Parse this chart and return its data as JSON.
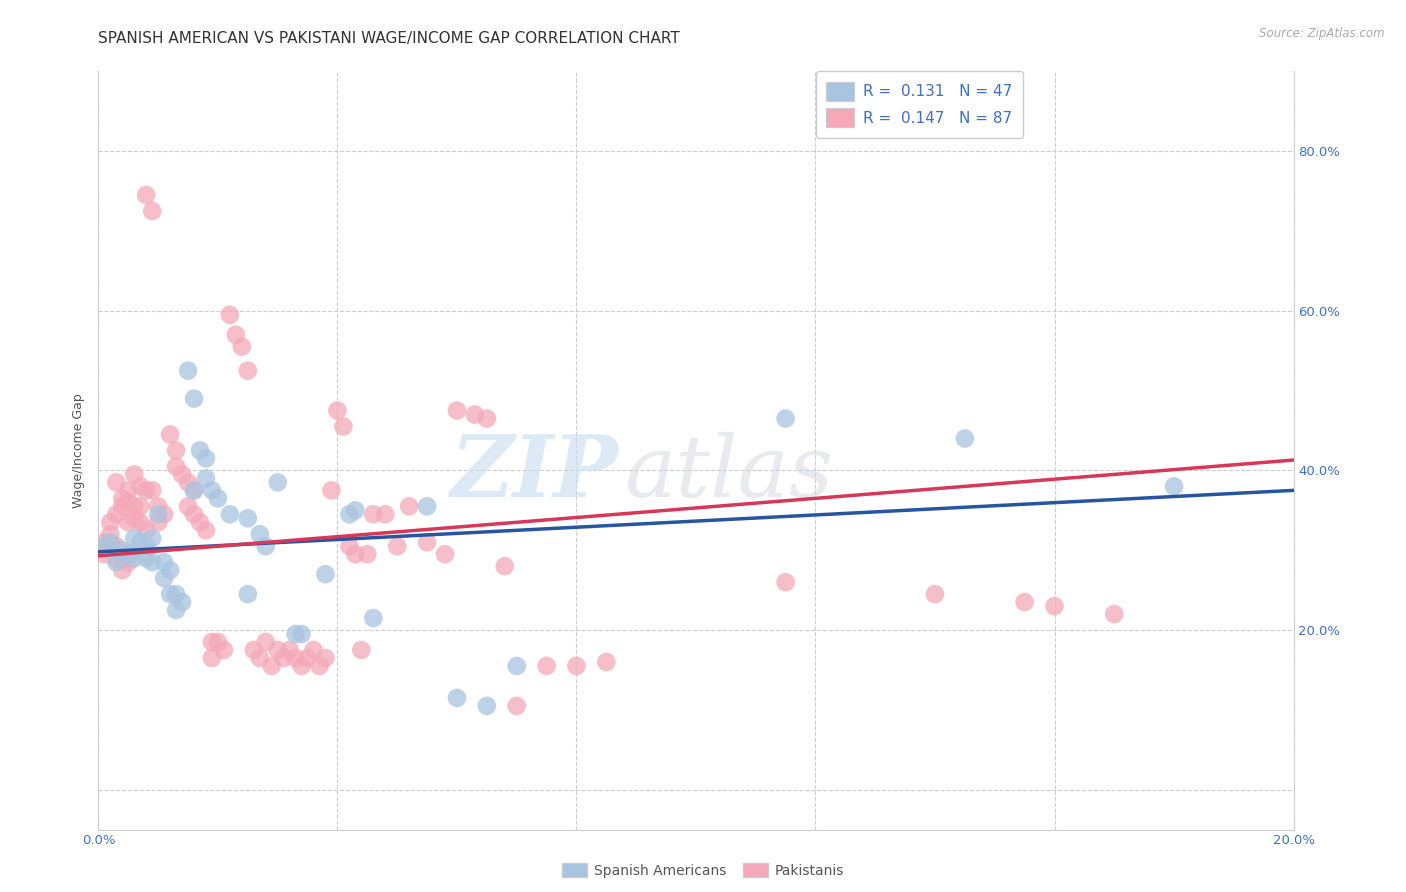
{
  "title": "SPANISH AMERICAN VS PAKISTANI WAGE/INCOME GAP CORRELATION CHART",
  "source": "Source: ZipAtlas.com",
  "ylabel": "Wage/Income Gap",
  "xlim": [
    0.0,
    0.2
  ],
  "ylim": [
    -0.05,
    0.9
  ],
  "x_ticks": [
    0.0,
    0.04,
    0.08,
    0.12,
    0.16,
    0.2
  ],
  "x_tick_labels": [
    "0.0%",
    "",
    "",
    "",
    "",
    "20.0%"
  ],
  "y_ticks": [
    0.0,
    0.2,
    0.4,
    0.6,
    0.8
  ],
  "y_tick_labels_right": [
    "",
    "20.0%",
    "40.0%",
    "60.0%",
    "80.0%"
  ],
  "legend_r1": "R =  0.131",
  "legend_n1": "N = 47",
  "legend_r2": "R =  0.147",
  "legend_n2": "N = 87",
  "color_blue": "#a8c4e0",
  "color_pink": "#f4a8b8",
  "color_blue_line": "#2855a0",
  "color_pink_line": "#d83858",
  "color_blue_text": "#4070c0",
  "scatter_blue": [
    [
      0.001,
      0.305
    ],
    [
      0.002,
      0.31
    ],
    [
      0.003,
      0.285
    ],
    [
      0.004,
      0.3
    ],
    [
      0.005,
      0.295
    ],
    [
      0.006,
      0.29
    ],
    [
      0.006,
      0.315
    ],
    [
      0.007,
      0.31
    ],
    [
      0.008,
      0.305
    ],
    [
      0.008,
      0.29
    ],
    [
      0.009,
      0.315
    ],
    [
      0.009,
      0.285
    ],
    [
      0.01,
      0.345
    ],
    [
      0.011,
      0.285
    ],
    [
      0.011,
      0.265
    ],
    [
      0.012,
      0.275
    ],
    [
      0.012,
      0.245
    ],
    [
      0.013,
      0.245
    ],
    [
      0.013,
      0.225
    ],
    [
      0.014,
      0.235
    ],
    [
      0.015,
      0.525
    ],
    [
      0.016,
      0.49
    ],
    [
      0.016,
      0.375
    ],
    [
      0.017,
      0.425
    ],
    [
      0.018,
      0.415
    ],
    [
      0.018,
      0.39
    ],
    [
      0.019,
      0.375
    ],
    [
      0.02,
      0.365
    ],
    [
      0.022,
      0.345
    ],
    [
      0.025,
      0.34
    ],
    [
      0.025,
      0.245
    ],
    [
      0.027,
      0.32
    ],
    [
      0.028,
      0.305
    ],
    [
      0.03,
      0.385
    ],
    [
      0.033,
      0.195
    ],
    [
      0.034,
      0.195
    ],
    [
      0.038,
      0.27
    ],
    [
      0.042,
      0.345
    ],
    [
      0.043,
      0.35
    ],
    [
      0.046,
      0.215
    ],
    [
      0.055,
      0.355
    ],
    [
      0.06,
      0.115
    ],
    [
      0.065,
      0.105
    ],
    [
      0.07,
      0.155
    ],
    [
      0.115,
      0.465
    ],
    [
      0.145,
      0.44
    ],
    [
      0.18,
      0.38
    ]
  ],
  "scatter_pink": [
    [
      0.001,
      0.31
    ],
    [
      0.001,
      0.295
    ],
    [
      0.002,
      0.335
    ],
    [
      0.002,
      0.32
    ],
    [
      0.003,
      0.385
    ],
    [
      0.003,
      0.345
    ],
    [
      0.003,
      0.305
    ],
    [
      0.003,
      0.29
    ],
    [
      0.004,
      0.365
    ],
    [
      0.004,
      0.355
    ],
    [
      0.004,
      0.29
    ],
    [
      0.004,
      0.275
    ],
    [
      0.005,
      0.375
    ],
    [
      0.005,
      0.36
    ],
    [
      0.005,
      0.335
    ],
    [
      0.005,
      0.285
    ],
    [
      0.006,
      0.395
    ],
    [
      0.006,
      0.355
    ],
    [
      0.006,
      0.34
    ],
    [
      0.007,
      0.38
    ],
    [
      0.007,
      0.355
    ],
    [
      0.007,
      0.335
    ],
    [
      0.008,
      0.375
    ],
    [
      0.008,
      0.325
    ],
    [
      0.008,
      0.745
    ],
    [
      0.009,
      0.725
    ],
    [
      0.009,
      0.375
    ],
    [
      0.01,
      0.355
    ],
    [
      0.01,
      0.335
    ],
    [
      0.011,
      0.345
    ],
    [
      0.012,
      0.445
    ],
    [
      0.013,
      0.425
    ],
    [
      0.013,
      0.405
    ],
    [
      0.014,
      0.395
    ],
    [
      0.015,
      0.385
    ],
    [
      0.015,
      0.355
    ],
    [
      0.016,
      0.375
    ],
    [
      0.016,
      0.345
    ],
    [
      0.017,
      0.335
    ],
    [
      0.018,
      0.325
    ],
    [
      0.019,
      0.185
    ],
    [
      0.019,
      0.165
    ],
    [
      0.02,
      0.185
    ],
    [
      0.021,
      0.175
    ],
    [
      0.022,
      0.595
    ],
    [
      0.023,
      0.57
    ],
    [
      0.024,
      0.555
    ],
    [
      0.025,
      0.525
    ],
    [
      0.026,
      0.175
    ],
    [
      0.027,
      0.165
    ],
    [
      0.028,
      0.185
    ],
    [
      0.029,
      0.155
    ],
    [
      0.03,
      0.175
    ],
    [
      0.031,
      0.165
    ],
    [
      0.032,
      0.175
    ],
    [
      0.033,
      0.165
    ],
    [
      0.034,
      0.155
    ],
    [
      0.035,
      0.165
    ],
    [
      0.036,
      0.175
    ],
    [
      0.037,
      0.155
    ],
    [
      0.038,
      0.165
    ],
    [
      0.039,
      0.375
    ],
    [
      0.04,
      0.475
    ],
    [
      0.041,
      0.455
    ],
    [
      0.042,
      0.305
    ],
    [
      0.043,
      0.295
    ],
    [
      0.044,
      0.175
    ],
    [
      0.045,
      0.295
    ],
    [
      0.046,
      0.345
    ],
    [
      0.048,
      0.345
    ],
    [
      0.05,
      0.305
    ],
    [
      0.052,
      0.355
    ],
    [
      0.055,
      0.31
    ],
    [
      0.058,
      0.295
    ],
    [
      0.06,
      0.475
    ],
    [
      0.063,
      0.47
    ],
    [
      0.065,
      0.465
    ],
    [
      0.068,
      0.28
    ],
    [
      0.07,
      0.105
    ],
    [
      0.075,
      0.155
    ],
    [
      0.08,
      0.155
    ],
    [
      0.085,
      0.16
    ],
    [
      0.115,
      0.26
    ],
    [
      0.14,
      0.245
    ],
    [
      0.155,
      0.235
    ],
    [
      0.16,
      0.23
    ],
    [
      0.17,
      0.22
    ]
  ],
  "trendline_blue": [
    [
      0.0,
      0.298
    ],
    [
      0.2,
      0.375
    ]
  ],
  "trendline_pink": [
    [
      0.0,
      0.293
    ],
    [
      0.2,
      0.413
    ]
  ],
  "bg_color": "#ffffff",
  "grid_color": "#cccccc",
  "title_fontsize": 11,
  "axis_label_fontsize": 9,
  "tick_fontsize": 9.5
}
